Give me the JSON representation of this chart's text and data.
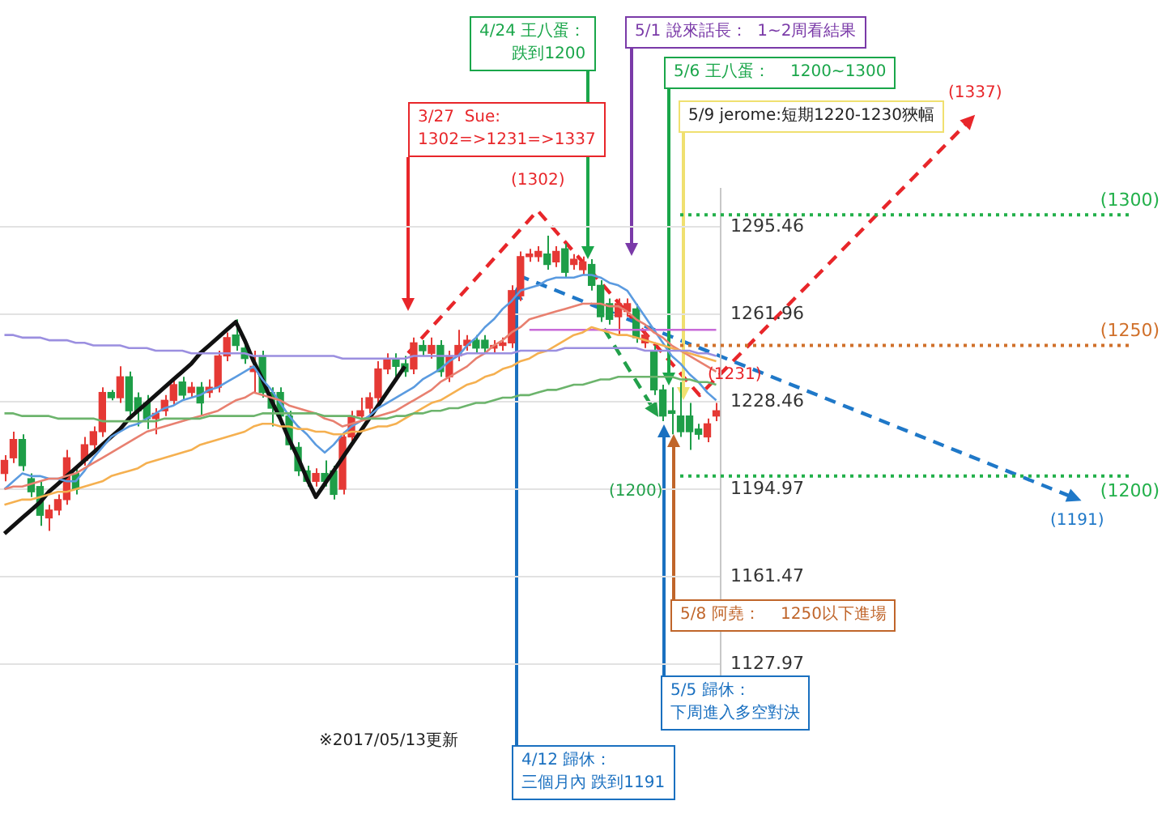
{
  "chart_data": {
    "type": "candlestick",
    "categories": [
      null,
      null,
      null,
      null,
      null,
      null,
      null,
      null,
      null,
      null,
      null,
      null,
      null,
      null,
      null,
      null,
      null,
      null,
      null,
      null,
      null,
      null,
      null,
      null,
      null,
      null,
      null,
      null,
      null,
      null,
      null,
      null,
      null,
      null,
      null,
      null,
      null,
      null,
      null,
      null,
      null,
      null,
      null,
      null,
      null,
      null,
      null,
      null,
      null,
      null,
      null,
      null,
      null,
      null,
      null,
      null,
      null,
      null,
      null,
      null,
      null,
      null,
      null,
      null,
      null,
      null,
      null,
      null,
      null,
      null,
      null,
      null,
      null,
      null,
      null,
      null,
      null,
      null,
      null,
      null,
      null
    ],
    "ohlc": [
      [
        1201,
        1208,
        1198,
        1206
      ],
      [
        1207,
        1217,
        1205,
        1214
      ],
      [
        1214,
        1216,
        1202,
        1204
      ],
      [
        1199,
        1201,
        1192,
        1194
      ],
      [
        1196,
        1198,
        1181,
        1185
      ],
      [
        1184,
        1189,
        1179,
        1187
      ],
      [
        1187,
        1193,
        1185,
        1191
      ],
      [
        1191,
        1210,
        1189,
        1207
      ],
      [
        1201,
        1203,
        1193,
        1195
      ],
      [
        1206,
        1215,
        1204,
        1212
      ],
      [
        1212,
        1219,
        1210,
        1217
      ],
      [
        1217,
        1234,
        1215,
        1232
      ],
      [
        1232,
        1233,
        1229,
        1230
      ],
      [
        1230,
        1242,
        1228,
        1238
      ],
      [
        1238,
        1240,
        1223,
        1225
      ],
      [
        1230,
        1232,
        1219,
        1225
      ],
      [
        1228,
        1231,
        1218,
        1222
      ],
      [
        1222,
        1226,
        1216,
        1224
      ],
      [
        1225,
        1231,
        1223,
        1229
      ],
      [
        1229,
        1237,
        1227,
        1235
      ],
      [
        1236,
        1238,
        1229,
        1231
      ],
      [
        1232,
        1236,
        1230,
        1234
      ],
      [
        1234,
        1236,
        1223,
        1228
      ],
      [
        1232,
        1237,
        1230,
        1234
      ],
      [
        1234,
        1248,
        1232,
        1246
      ],
      [
        1246,
        1255,
        1244,
        1253
      ],
      [
        1254,
        1260,
        1248,
        1250
      ],
      [
        1249,
        1251,
        1243,
        1245
      ],
      [
        1240,
        1248,
        1232,
        1242
      ],
      [
        1246,
        1248,
        1230,
        1232
      ],
      [
        1232,
        1234,
        1219,
        1226
      ],
      [
        1232,
        1234,
        1221,
        1223
      ],
      [
        1223,
        1225,
        1210,
        1212
      ],
      [
        1211,
        1213,
        1200,
        1202
      ],
      [
        1202,
        1204,
        1196,
        1198
      ],
      [
        1198,
        1203,
        1196,
        1201
      ],
      [
        1201,
        1206,
        1196,
        1198
      ],
      [
        1202,
        1204,
        1191,
        1193
      ],
      [
        1195,
        1217,
        1193,
        1215
      ],
      [
        1215,
        1225,
        1213,
        1223
      ],
      [
        1223,
        1230,
        1221,
        1225
      ],
      [
        1226,
        1232,
        1224,
        1230
      ],
      [
        1230,
        1244,
        1228,
        1241
      ],
      [
        1241,
        1247,
        1239,
        1245
      ],
      [
        1245,
        1247,
        1238,
        1242
      ],
      [
        1243,
        1246,
        1238,
        1240
      ],
      [
        1241,
        1253,
        1239,
        1251
      ],
      [
        1250,
        1252,
        1246,
        1248
      ],
      [
        1247,
        1253,
        1245,
        1250
      ],
      [
        1250,
        1252,
        1238,
        1240
      ],
      [
        1238,
        1248,
        1236,
        1246
      ],
      [
        1246,
        1256,
        1244,
        1250
      ],
      [
        1250,
        1254,
        1248,
        1252
      ],
      [
        1252,
        1254,
        1247,
        1249
      ],
      [
        1252,
        1254,
        1247,
        1249
      ],
      [
        1249,
        1252,
        1247,
        1250
      ],
      [
        1250,
        1253,
        1248,
        1251
      ],
      [
        1251,
        1273,
        1249,
        1271
      ],
      [
        1269,
        1286,
        1267,
        1284
      ],
      [
        1284,
        1287,
        1282,
        1285
      ],
      [
        1284,
        1288,
        1282,
        1286
      ],
      [
        1285,
        1292,
        1279,
        1281
      ],
      [
        1282,
        1288,
        1280,
        1286
      ],
      [
        1287,
        1289,
        1276,
        1278
      ],
      [
        1281,
        1285,
        1279,
        1283
      ],
      [
        1279,
        1284,
        1277,
        1282
      ],
      [
        1281,
        1283,
        1271,
        1273
      ],
      [
        1273,
        1275,
        1259,
        1261
      ],
      [
        1266,
        1268,
        1258,
        1260
      ],
      [
        1261,
        1268,
        1254,
        1266
      ],
      [
        1263,
        1268,
        1261,
        1266
      ],
      [
        1264,
        1266,
        1251,
        1253
      ],
      [
        1251,
        1256,
        1249,
        1254
      ],
      [
        1248,
        1250,
        1231,
        1233
      ],
      [
        1233,
        1235,
        1221,
        1223
      ],
      [
        1225,
        1234,
        1216,
        1224
      ],
      [
        1223,
        1236,
        1215,
        1217
      ],
      [
        1223,
        1228,
        1210,
        1217
      ],
      [
        1218,
        1220,
        1214,
        1216
      ],
      [
        1215,
        1222,
        1213,
        1220
      ],
      [
        1223,
        1228,
        1221,
        1225
      ]
    ],
    "colors": [
      "#e53935",
      "#e53935",
      "#1e9e48",
      "#1e9e48",
      "#1e9e48",
      "#e53935",
      "#e53935",
      "#e53935",
      "#1e9e48",
      "#e53935",
      "#e53935",
      "#e53935",
      "#1e9e48",
      "#e53935",
      "#1e9e48",
      "#1e9e48",
      "#1e9e48",
      "#e53935",
      "#e53935",
      "#e53935",
      "#1e9e48",
      "#e53935",
      "#1e9e48",
      "#e53935",
      "#e53935",
      "#e53935",
      "#1e9e48",
      "#1e9e48",
      "#e53935",
      "#1e9e48",
      "#1e9e48",
      "#1e9e48",
      "#1e9e48",
      "#1e9e48",
      "#1e9e48",
      "#e53935",
      "#1e9e48",
      "#1e9e48",
      "#e53935",
      "#e53935",
      "#e53935",
      "#e53935",
      "#e53935",
      "#e53935",
      "#1e9e48",
      "#1e9e48",
      "#e53935",
      "#1e9e48",
      "#e53935",
      "#1e9e48",
      "#e53935",
      "#e53935",
      "#e53935",
      "#1e9e48",
      "#1e9e48",
      "#e53935",
      "#e53935",
      "#e53935",
      "#e53935",
      "#e53935",
      "#e53935",
      "#1e9e48",
      "#e53935",
      "#1e9e48",
      "#e53935",
      "#e53935",
      "#1e9e48",
      "#1e9e48",
      "#1e9e48",
      "#e53935",
      "#e53935",
      "#1e9e48",
      "#e53935",
      "#1e9e48",
      "#1e9e48",
      "#1e9e48",
      "#1e9e48",
      "#1e9e48",
      "#1e9e48",
      "#e53935",
      "#e53935"
    ],
    "series": [
      {
        "type": "line",
        "color": "#9b8fe0",
        "values": [
          1254,
          1254,
          1253,
          1253,
          1253,
          1252,
          1252,
          1252,
          1251,
          1251,
          1250,
          1250,
          1250,
          1250,
          1249,
          1249,
          1249,
          1248,
          1248,
          1248,
          1248,
          1247,
          1247,
          1247,
          1247,
          1247,
          1247,
          1247,
          1246,
          1246,
          1246,
          1246,
          1246,
          1246,
          1246,
          1246,
          1246,
          1246,
          1245,
          1245,
          1245,
          1245,
          1245,
          1245,
          1245,
          1245,
          1246,
          1246,
          1246,
          1246,
          1246,
          1246,
          1247,
          1247,
          1247,
          1247,
          1247,
          1247,
          1248,
          1248,
          1248,
          1248,
          1248,
          1249,
          1249,
          1249,
          1249,
          1249,
          1249,
          1249,
          1249,
          1249,
          1248,
          1248,
          1248,
          1248,
          1248,
          1248,
          1247,
          1247,
          1246
        ]
      },
      {
        "type": "line",
        "color": "#6cb46c",
        "values": [
          1224,
          1224,
          1223,
          1223,
          1223,
          1223,
          1222,
          1222,
          1222,
          1222,
          1222,
          1221,
          1221,
          1221,
          1221,
          1221,
          1221,
          1221,
          1222,
          1222,
          1222,
          1222,
          1222,
          1223,
          1223,
          1223,
          1223,
          1223,
          1223,
          1224,
          1224,
          1224,
          1224,
          1224,
          1224,
          1224,
          1223,
          1223,
          1223,
          1223,
          1222,
          1222,
          1222,
          1222,
          1223,
          1223,
          1224,
          1224,
          1225,
          1225,
          1226,
          1226,
          1227,
          1228,
          1228,
          1229,
          1230,
          1230,
          1231,
          1231,
          1232,
          1233,
          1233,
          1234,
          1235,
          1235,
          1236,
          1237,
          1237,
          1238,
          1238,
          1238,
          1238,
          1238,
          1238,
          1238,
          1237,
          1237,
          1236,
          1236,
          1235
        ]
      },
      {
        "type": "line",
        "color": "#f5b050",
        "values": [
          1189,
          1190,
          1191,
          1191,
          1192,
          1193,
          1194,
          1194,
          1195,
          1196,
          1197,
          1198,
          1200,
          1201,
          1202,
          1203,
          1205,
          1206,
          1207,
          1208,
          1209,
          1210,
          1212,
          1213,
          1214,
          1215,
          1216,
          1217,
          1219,
          1220,
          1220,
          1219,
          1219,
          1218,
          1218,
          1217,
          1217,
          1216,
          1216,
          1217,
          1217,
          1218,
          1219,
          1219,
          1220,
          1222,
          1224,
          1226,
          1228,
          1229,
          1231,
          1233,
          1235,
          1236,
          1238,
          1239,
          1241,
          1242,
          1244,
          1245,
          1247,
          1248,
          1250,
          1252,
          1254,
          1255,
          1257,
          1256,
          1255,
          1254,
          1254,
          1253,
          1252,
          1251,
          1250,
          1249,
          1248,
          1247,
          1246,
          1245,
          1244
        ]
      },
      {
        "type": "line",
        "color": "#e88070",
        "values": [
          1195,
          1196,
          1196,
          1197,
          1198,
          1199,
          1199,
          1200,
          1201,
          1203,
          1205,
          1207,
          1209,
          1211,
          1213,
          1215,
          1217,
          1218,
          1219,
          1220,
          1221,
          1222,
          1223,
          1224,
          1225,
          1227,
          1229,
          1230,
          1232,
          1231,
          1230,
          1229,
          1227,
          1226,
          1225,
          1224,
          1222,
          1221,
          1219,
          1220,
          1221,
          1222,
          1223,
          1224,
          1225,
          1227,
          1229,
          1231,
          1233,
          1236,
          1238,
          1240,
          1242,
          1245,
          1247,
          1250,
          1252,
          1255,
          1257,
          1260,
          1261,
          1262,
          1263,
          1264,
          1265,
          1266,
          1266,
          1266,
          1265,
          1265,
          1263,
          1260,
          1258,
          1255,
          1253,
          1250,
          1248,
          1246,
          1244,
          1242,
          1240
        ]
      },
      {
        "type": "line",
        "color": "#5b9be0",
        "values": [
          1195,
          1198,
          1201,
          1200,
          1200,
          1199,
          1199,
          1198,
          1198,
          1202,
          1207,
          1211,
          1215,
          1217,
          1219,
          1220,
          1222,
          1224,
          1226,
          1227,
          1229,
          1230,
          1231,
          1233,
          1234,
          1236,
          1238,
          1240,
          1242,
          1237,
          1233,
          1228,
          1223,
          1219,
          1216,
          1212,
          1209,
          1212,
          1216,
          1219,
          1221,
          1223,
          1226,
          1228,
          1230,
          1232,
          1234,
          1237,
          1239,
          1241,
          1244,
          1246,
          1250,
          1253,
          1257,
          1260,
          1264,
          1267,
          1271,
          1272,
          1273,
          1275,
          1276,
          1276,
          1276,
          1277,
          1277,
          1276,
          1274,
          1273,
          1271,
          1266,
          1261,
          1256,
          1251,
          1246,
          1243,
          1239,
          1236,
          1232,
          1229
        ]
      },
      {
        "type": "line",
        "color": "#c86ad8",
        "values": [
          null,
          null,
          null,
          null,
          null,
          null,
          null,
          null,
          null,
          null,
          null,
          null,
          null,
          null,
          null,
          null,
          null,
          null,
          null,
          null,
          null,
          null,
          null,
          null,
          null,
          null,
          null,
          null,
          null,
          null,
          null,
          null,
          null,
          null,
          null,
          null,
          null,
          null,
          null,
          null,
          null,
          null,
          null,
          null,
          null,
          null,
          null,
          null,
          null,
          null,
          null,
          null,
          null,
          null,
          null,
          null,
          null,
          null,
          null,
          1256,
          1256,
          1256,
          1256,
          1256,
          1256,
          1256,
          1256,
          1256,
          1256,
          1256,
          1256,
          1256,
          1256,
          1256,
          1256,
          1256,
          1256,
          1256,
          1256,
          1256,
          1256
        ]
      },
      {
        "type": "line",
        "color": "#111111",
        "values": [
          1178,
          1181,
          1184,
          1187,
          1190,
          1194,
          1197,
          1200,
          1203,
          1206,
          1209,
          1212,
          1215,
          1218,
          1222,
          1225,
          1228,
          1231,
          1234,
          1237,
          1240,
          1243,
          1247,
          1250,
          1253,
          1256,
          1259,
          1252,
          1244,
          1237,
          1229,
          1222,
          1214,
          1207,
          1199,
          1192,
          1197,
          1202,
          1207,
          1212,
          1217,
          1222,
          1227,
          1232,
          1237,
          1242,
          null,
          null,
          null,
          null,
          null,
          null,
          null,
          null,
          null,
          null,
          null,
          null,
          null,
          null,
          null,
          null,
          null,
          null,
          null,
          null,
          null,
          null,
          null,
          null,
          null,
          null,
          null,
          null,
          null,
          null,
          null,
          null,
          null,
          null,
          null
        ]
      }
    ],
    "ylim": [
      1124,
      1310
    ],
    "yticks": [
      1127.97,
      1161.47,
      1194.97,
      1228.46,
      1261.96,
      1295.46
    ],
    "tick_labels": "y",
    "grid": "y",
    "legend": false,
    "marker": "none",
    "line_style": "solid",
    "ref_lines": [
      {
        "axis": "y",
        "value": 1300,
        "label": "(1300)",
        "color": "#22b04a",
        "line_style": "dotted"
      },
      {
        "axis": "y",
        "value": 1250,
        "label": "(1250)",
        "color": "#d0702a",
        "line_style": "dotted"
      },
      {
        "axis": "y",
        "value": 1200,
        "label": "(1200)",
        "color": "#22b04a",
        "line_style": "dotted"
      }
    ],
    "annotations": [
      "3/27  Sue: 1302=>1231=>1337",
      "4/24 王八蛋：跌到1200",
      "5/1 說來話長：  1~2周看結果",
      "5/6 王八蛋：    1200~1300",
      "5/9 jerome:短期1220-1230狹幅",
      "5/8 阿堯：    1250以下進場",
      "5/5 歸休：下周進入多空對決",
      "4/12 歸休：三個月內 跌到1191",
      "※2017/05/13更新",
      "(1302)",
      "(1231)",
      "(1337)",
      "(1191)",
      "(1200)"
    ]
  }
}
